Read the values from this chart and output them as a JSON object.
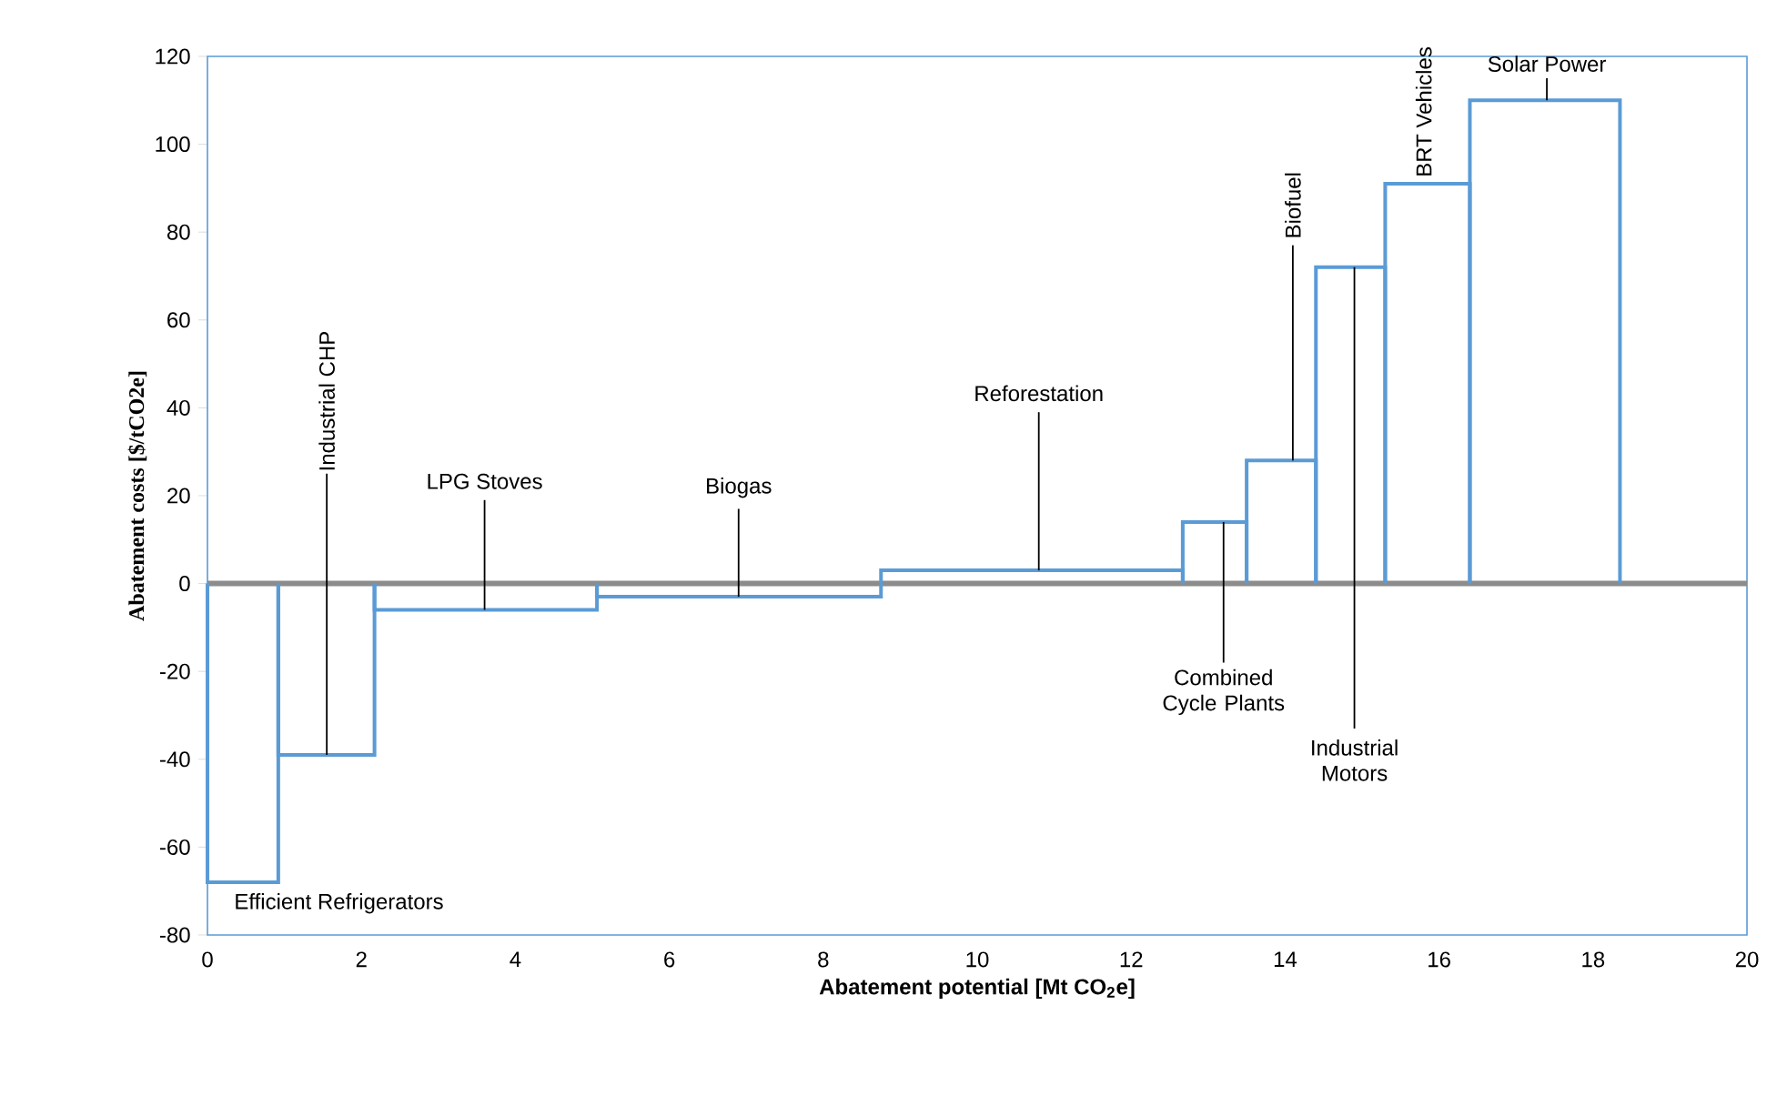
{
  "chart_data": {
    "type": "histogram",
    "xlabel": "Abatement potential [Mt CO$_{2}$e]",
    "ylabel": "Abatement costs [$/tCO2e]",
    "bins": [
      0,
      0.92,
      2.17,
      5.06,
      8.75,
      12.67,
      13.5,
      14.4,
      15.3,
      16.4,
      18.35
    ],
    "values": [
      -68,
      -39,
      -6,
      -3,
      3,
      14,
      28,
      72,
      91,
      110
    ],
    "color": "#5b9bd5",
    "xlim": [
      0,
      20
    ],
    "xticks": [
      0,
      2,
      4,
      6,
      8,
      10,
      12,
      14,
      16,
      18,
      20
    ],
    "ylim": [
      -80,
      120
    ],
    "yticks": [
      -80,
      -60,
      -40,
      -20,
      0,
      20,
      40,
      60,
      80,
      100,
      120
    ],
    "ref_lines": [
      {
        "axis": "y",
        "value": 0,
        "color": "#8c8c8c"
      }
    ],
    "annotations": [
      {
        "text": "Efficient Refrigerators",
        "x": 0.46,
        "y": -68
      },
      {
        "text": "Industrial CHP",
        "x": 1.55,
        "y": -39
      },
      {
        "text": "LPG Stoves",
        "x": 3.6,
        "y": -6
      },
      {
        "text": "Biogas",
        "x": 6.9,
        "y": -3
      },
      {
        "text": "Reforestation",
        "x": 10.8,
        "y": 3
      },
      {
        "text": "Combined Cycle Plants",
        "x": 13.2,
        "y": 14
      },
      {
        "text": "Biofuel",
        "x": 14.1,
        "y": 28
      },
      {
        "text": "Industrial Motors",
        "x": 14.9,
        "y": 72
      },
      {
        "text": "BRT Vehicles",
        "x": 15.8,
        "y": 91
      },
      {
        "text": "Solar Power",
        "x": 17.4,
        "y": 110
      }
    ]
  }
}
